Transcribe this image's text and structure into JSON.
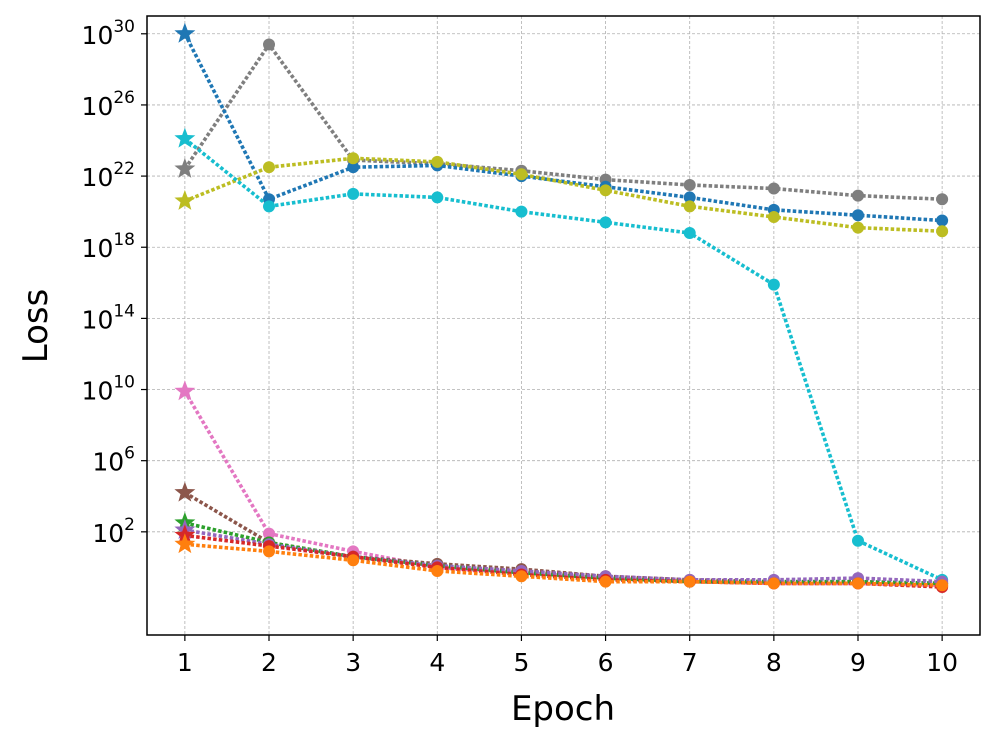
{
  "chart_data": {
    "type": "line",
    "title": "",
    "xlabel": "Epoch",
    "ylabel": "Loss",
    "yscale": "log",
    "x": [
      1,
      2,
      3,
      4,
      5,
      6,
      7,
      8,
      9,
      10
    ],
    "xlim": [
      0.55,
      10.45
    ],
    "ylim_log10": [
      -3.8,
      31
    ],
    "x_ticks": [
      "1",
      "2",
      "3",
      "4",
      "5",
      "6",
      "7",
      "8",
      "9",
      "10"
    ],
    "y_ticks": [
      {
        "exp": 2,
        "base": "10",
        "sup": "2"
      },
      {
        "exp": 6,
        "base": "10",
        "sup": "6"
      },
      {
        "exp": 10,
        "base": "10",
        "sup": "10"
      },
      {
        "exp": 14,
        "base": "10",
        "sup": "14"
      },
      {
        "exp": 18,
        "base": "10",
        "sup": "18"
      },
      {
        "exp": 22,
        "base": "10",
        "sup": "22"
      },
      {
        "exp": 26,
        "base": "10",
        "sup": "26"
      },
      {
        "exp": 30,
        "base": "10",
        "sup": "30"
      }
    ],
    "grid": true,
    "line_style": "dotted",
    "first_marker": "star",
    "other_marker": "circle",
    "series": [
      {
        "name": "series-gray",
        "color": "#7f7f7f",
        "log10_values": [
          22.4,
          29.4,
          22.9,
          22.7,
          22.3,
          21.8,
          21.5,
          21.3,
          20.9,
          20.7
        ]
      },
      {
        "name": "series-blue",
        "color": "#1f77b4",
        "log10_values": [
          30.0,
          20.7,
          22.5,
          22.6,
          22.0,
          21.4,
          20.8,
          20.1,
          19.8,
          19.5
        ]
      },
      {
        "name": "series-olive",
        "color": "#bcbd22",
        "log10_values": [
          20.6,
          22.5,
          23.0,
          22.8,
          22.1,
          21.2,
          20.3,
          19.7,
          19.1,
          18.9
        ]
      },
      {
        "name": "series-cyan",
        "color": "#17becf",
        "log10_values": [
          24.1,
          20.3,
          21.0,
          20.8,
          20.0,
          19.4,
          18.8,
          15.9,
          1.5,
          -0.7
        ]
      },
      {
        "name": "series-pink",
        "color": "#e377c2",
        "log10_values": [
          9.9,
          1.9,
          0.9,
          0.0,
          -0.3,
          -0.6,
          -0.8,
          -0.9,
          -0.9,
          -1.0
        ]
      },
      {
        "name": "series-brown",
        "color": "#8c564b",
        "log10_values": [
          4.2,
          1.4,
          0.6,
          0.2,
          -0.1,
          -0.5,
          -0.7,
          -0.8,
          -0.8,
          -0.9
        ]
      },
      {
        "name": "series-green",
        "color": "#2ca02c",
        "log10_values": [
          2.5,
          1.4,
          0.6,
          0.1,
          -0.3,
          -0.6,
          -0.8,
          -0.8,
          -0.8,
          -0.9
        ]
      },
      {
        "name": "series-purple",
        "color": "#9467bd",
        "log10_values": [
          2.1,
          1.3,
          0.6,
          0.1,
          -0.2,
          -0.5,
          -0.7,
          -0.7,
          -0.6,
          -0.8
        ]
      },
      {
        "name": "series-red",
        "color": "#d62728",
        "log10_values": [
          1.8,
          1.2,
          0.6,
          0.0,
          -0.4,
          -0.7,
          -0.8,
          -0.9,
          -0.9,
          -1.1
        ]
      },
      {
        "name": "series-orange",
        "color": "#ff7f0e",
        "log10_values": [
          1.3,
          0.9,
          0.4,
          -0.2,
          -0.5,
          -0.8,
          -0.8,
          -0.9,
          -0.9,
          -1.0
        ]
      }
    ]
  }
}
